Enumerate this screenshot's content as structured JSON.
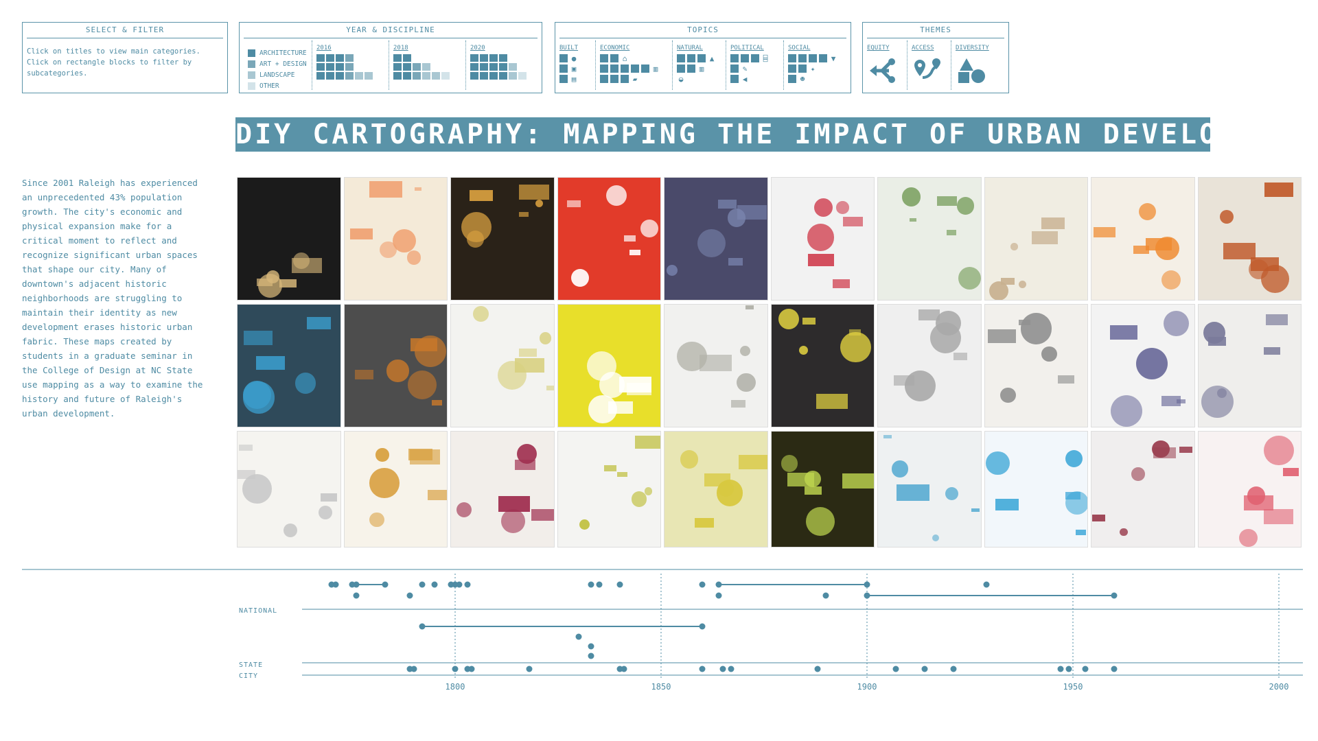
{
  "filter_panel": {
    "title": "SELECT & FILTER",
    "lines": [
      "Click on titles to view main categories.",
      "Click on rectangle blocks to filter by",
      "subcategories."
    ]
  },
  "year_panel": {
    "title": "YEAR & DISCIPLINE",
    "legend": [
      "ARCHITECTURE",
      "ART + DESIGN",
      "LANDSCAPE",
      "OTHER"
    ],
    "years": [
      "2016",
      "2018",
      "2020"
    ],
    "accent": "#4e8ba3"
  },
  "topics_panel": {
    "title": "TOPICS",
    "topics": [
      "BUILT",
      "ECONOMIC",
      "NATURAL",
      "POLITICAL",
      "SOCIAL"
    ]
  },
  "themes_panel": {
    "title": "THEMES",
    "themes": [
      {
        "label": "EQUITY",
        "icon": "equity-arrows-icon"
      },
      {
        "label": "ACCESS",
        "icon": "access-pin-icon"
      },
      {
        "label": "DIVERSITY",
        "icon": "diversity-shapes-icon"
      }
    ]
  },
  "page_title": "DIY CARTOGRAPHY: MAPPING THE IMPACT OF URBAN DEVELOPMENT",
  "intro": "Since 2001 Raleigh has experienced\nan unprecedented 43% population\ngrowth. The city's economic and\nphysical expansion make for a\ncritical moment to reflect and\nrecognize significant urban spaces\nthat shape our city. Many of\ndowntown's adjacent historic\nneighborhoods are struggling to\nmaintain their identity as new\ndevelopment erases historic urban\nfabric. These maps created by\nstudents in a graduate seminar in\nthe College of Design at NC State\nuse mapping as a way to examine the\nhistory and future of Raleigh's\nurban development.",
  "gallery": {
    "rows": [
      [
        "#1b1b1b",
        "#f4ead8",
        "#2a2218",
        "#e23b2a",
        "#4a4a6a",
        "#f2f2f2",
        "#eaeee6",
        "#f0ede2",
        "#f4efe6",
        "#e9e3d8"
      ],
      [
        "#2f4a5a",
        "#4d4d4d",
        "#f3f3f0",
        "#e8df2a",
        "#f1f1ef",
        "#2d2b2c",
        "#efefef",
        "#f2f0ec",
        "#f3f3f3",
        "#efeeec"
      ],
      [
        "#f5f4f0",
        "#f7f3ea",
        "#f2eeea",
        "#f4f4f2",
        "#e8e6b4",
        "#2b2a14",
        "#eef1f2",
        "#f2f7fb",
        "#f0eeee",
        "#f8f2f2"
      ]
    ],
    "accents": [
      [
        "#d8b87a",
        "#f0a070",
        "#d8a040",
        "#ffffff",
        "#7a86b0",
        "#d04050",
        "#7aa060",
        "#c8b090",
        "#f08a30",
        "#c05a2a"
      ],
      [
        "#3a9ac8",
        "#c8782a",
        "#d8d080",
        "#ffffff",
        "#b0b0a8",
        "#e0d040",
        "#a8a8a8",
        "#909090",
        "#6a6a9a",
        "#7a7a9a"
      ],
      [
        "#c8c8c8",
        "#d8a040",
        "#a03050",
        "#c0c040",
        "#d8c840",
        "#c0d850",
        "#50a8d0",
        "#40a8d8",
        "#9a4050",
        "#e06070"
      ]
    ]
  },
  "timeline": {
    "labels": [
      "NATIONAL",
      "STATE",
      "CITY"
    ],
    "axis": {
      "min": 1763,
      "max": 2005,
      "ticks": [
        "1800",
        "1850",
        "1900",
        "1950",
        "2000"
      ]
    },
    "national_upper": [
      1770,
      1771,
      1775,
      1776,
      1783,
      1792,
      1795,
      1799,
      1800,
      1801,
      1803,
      1833,
      1835,
      1840,
      1860,
      1864,
      1900,
      1929
    ],
    "national_upper_spans": [
      [
        1775,
        1783
      ],
      [
        1864,
        1900
      ]
    ],
    "national_lower": [
      1776,
      1789,
      1864,
      1890,
      1900,
      1960
    ],
    "national_lower_spans": [
      [
        1900,
        1960
      ]
    ],
    "state": [
      1792,
      1860,
      1830,
      1833,
      1833
    ],
    "state_spans": [
      [
        1792,
        1860
      ]
    ],
    "city": [
      1789,
      1790,
      1800,
      1803,
      1804,
      1818,
      1840,
      1841,
      1860,
      1865,
      1867,
      1888,
      1907,
      1914,
      1921,
      1947,
      1949,
      1953,
      1960
    ]
  }
}
